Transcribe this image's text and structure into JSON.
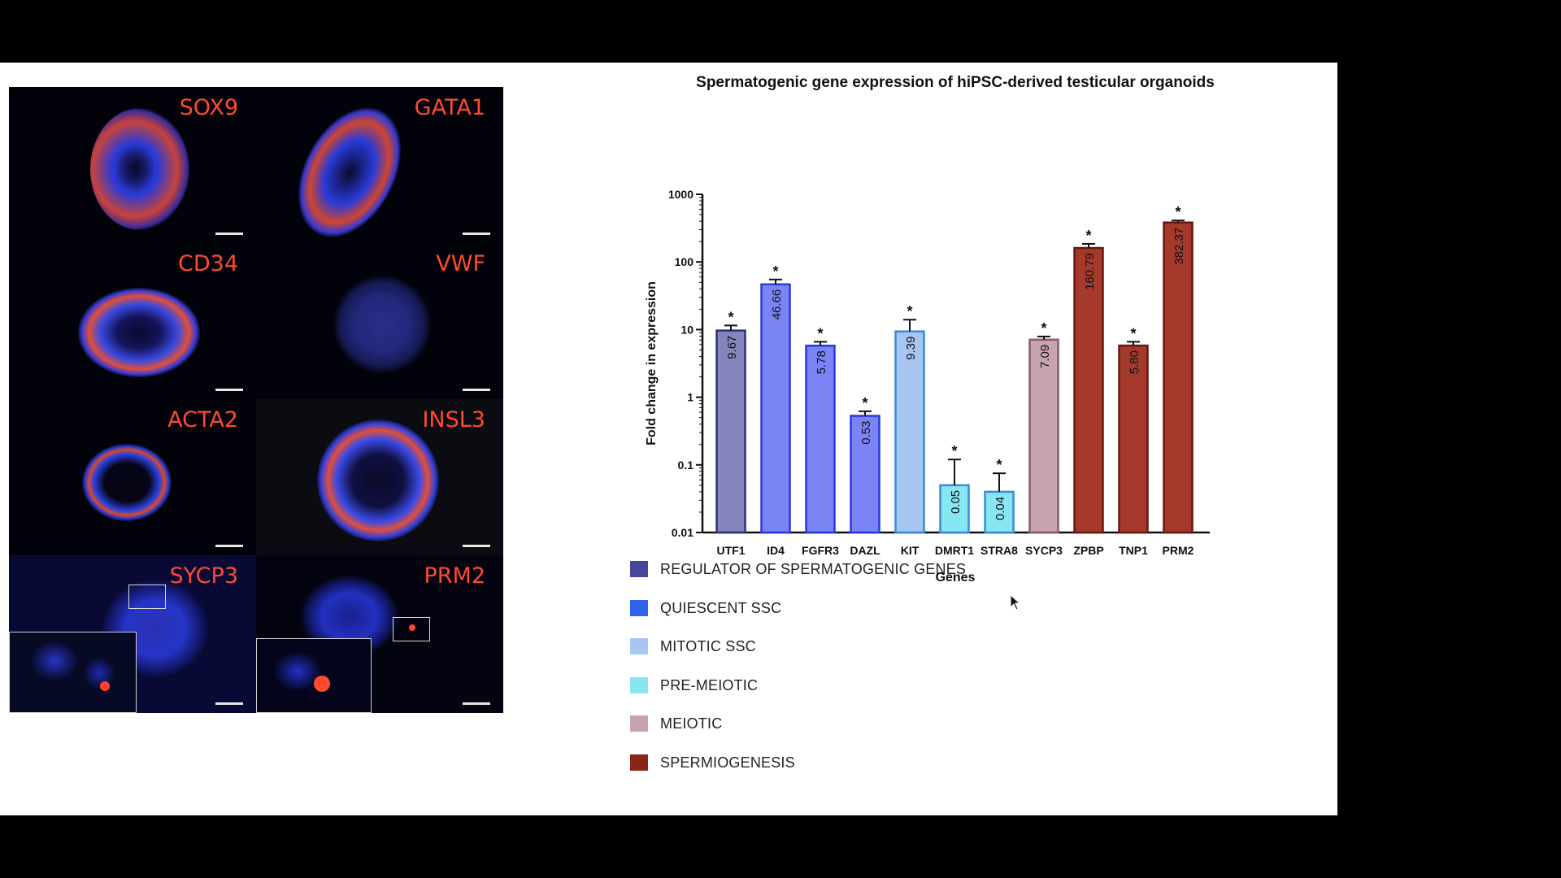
{
  "micrographs": [
    {
      "label": "SOX9"
    },
    {
      "label": "GATA1"
    },
    {
      "label": "CD34"
    },
    {
      "label": "VWF"
    },
    {
      "label": "ACTA2"
    },
    {
      "label": "INSL3"
    },
    {
      "label": "SYCP3",
      "inset": true
    },
    {
      "label": "PRM2",
      "inset": true
    }
  ],
  "colors": {
    "regulator": "#46469a",
    "quiescent": "#2d62ea",
    "mitotic": "#a8c6f2",
    "pre_meiotic": "#86e6f2",
    "meiotic": "#c8a4b0",
    "spermiogenesis": "#8a2518",
    "label_red": "#ff4a2e"
  },
  "chart_data": {
    "type": "bar",
    "title": "Spermatogenic gene expression of hiPSC-derived testicular organoids",
    "xlabel": "Genes",
    "ylabel": "Fold change in expression",
    "yscale": "log",
    "ylim": [
      0.01,
      1000
    ],
    "yticks": [
      "0.01",
      "0.1",
      "1",
      "10",
      "100",
      "1000"
    ],
    "categories": [
      "UTF1",
      "ID4",
      "FGFR3",
      "DAZL",
      "KIT",
      "DMRT1",
      "STRA8",
      "SYCP3",
      "ZPBP",
      "TNP1",
      "PRM2"
    ],
    "values": [
      9.67,
      46.66,
      5.78,
      0.53,
      9.39,
      0.05,
      0.04,
      7.09,
      160.79,
      5.8,
      382.37
    ],
    "value_labels": [
      "9.67",
      "46.66",
      "5.78",
      "0.53",
      "9.39",
      "0.05",
      "0.04",
      "7.09",
      "160.79",
      "5.80",
      "382.37"
    ],
    "error_upper": [
      11.5,
      55,
      6.6,
      0.62,
      14,
      0.12,
      0.075,
      7.9,
      185,
      6.6,
      410
    ],
    "groups": [
      "regulator",
      "quiescent",
      "quiescent",
      "quiescent",
      "mitotic",
      "pre_meiotic",
      "pre_meiotic",
      "meiotic",
      "spermiogenesis",
      "spermiogenesis",
      "spermiogenesis"
    ],
    "significance": "*"
  },
  "legend": [
    {
      "label": "REGULATOR OF SPERMATOGENIC GENES",
      "color": "#46469a"
    },
    {
      "label": "QUIESCENT SSC",
      "color": "#2d62ea"
    },
    {
      "label": "MITOTIC SSC",
      "color": "#a8c6f2"
    },
    {
      "label": "PRE-MEIOTIC",
      "color": "#86e6f2"
    },
    {
      "label": "MEIOTIC",
      "color": "#c8a4b0"
    },
    {
      "label": "SPERMIOGENESIS",
      "color": "#8a2518"
    }
  ],
  "toolbar": [
    {
      "name": "previous-slide-button",
      "icon": "arrow-left-icon"
    },
    {
      "name": "pen-tool-button",
      "icon": "pencil-icon"
    },
    {
      "name": "captions-button",
      "icon": "cc-icon"
    },
    {
      "name": "camera-toggle-button",
      "icon": "camera-off-icon"
    },
    {
      "name": "more-options-button",
      "icon": "more-icon"
    },
    {
      "name": "next-slide-button",
      "icon": "arrow-right-icon"
    }
  ]
}
